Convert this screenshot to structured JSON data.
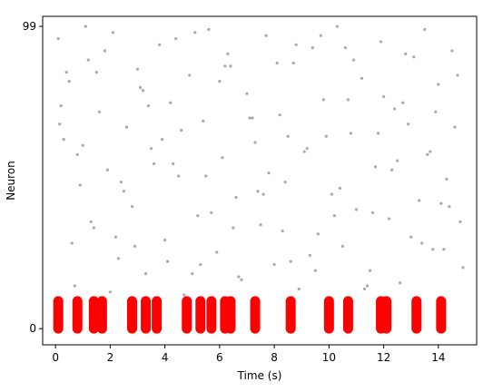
{
  "chart_data": {
    "type": "raster",
    "xlabel": "Time (s)",
    "ylabel": "Neuron",
    "xlim": [
      -0.47,
      15.4
    ],
    "ylim": [
      -5.3,
      102.3
    ],
    "xticks": [
      0,
      2,
      4,
      6,
      8,
      10,
      12,
      14
    ],
    "yticks": [
      0,
      99
    ],
    "series": [
      {
        "color": "#a9a9a9",
        "x": [
          0.1,
          0.3,
          0.5,
          0.7,
          0.9,
          1.2,
          1.4,
          1.6,
          1.9,
          2.1,
          2.3,
          2.6,
          2.8,
          3.0,
          3.3,
          3.5,
          3.8,
          4.0,
          4.2,
          4.5,
          4.7,
          4.9,
          5.2,
          5.4,
          5.6,
          5.9,
          6.1,
          6.3,
          6.6,
          6.8,
          7.0,
          7.3,
          7.5,
          7.7,
          8.0,
          8.2,
          8.4,
          8.7,
          8.9,
          9.1,
          9.4,
          9.6,
          9.8,
          10.1,
          10.3,
          10.5,
          10.8,
          11.0,
          11.2,
          11.5,
          11.7,
          11.9,
          12.2,
          12.4,
          12.6,
          12.9,
          13.1,
          13.3,
          13.6,
          13.8,
          14.0,
          14.3,
          14.5,
          14.8,
          0.2,
          0.6,
          1.0,
          1.5,
          2.0,
          2.5,
          3.1,
          3.6,
          4.1,
          4.6,
          5.1,
          5.7,
          6.2,
          6.7,
          7.2,
          7.8,
          8.3,
          8.8,
          9.3,
          9.9,
          10.4,
          10.9,
          11.4,
          12.0,
          12.5,
          13.0,
          13.5,
          14.1,
          14.6,
          14.9,
          0.4,
          0.8,
          1.3,
          1.8,
          2.4,
          2.9,
          3.4,
          3.9,
          4.4,
          5.0,
          5.5,
          6.0,
          6.5,
          7.1,
          7.6,
          8.1,
          8.6,
          9.2,
          9.7,
          10.2,
          10.7,
          11.3,
          11.8,
          12.3,
          12.8,
          13.4,
          13.9,
          14.4,
          14.7,
          0.15,
          1.1,
          2.2,
          3.2,
          4.3,
          5.3,
          6.4,
          7.4,
          8.5,
          9.5,
          10.6,
          11.6,
          12.7,
          13.7,
          14.2
        ],
        "y": [
          95,
          62,
          81,
          14,
          47,
          88,
          33,
          71,
          52,
          97,
          23,
          66,
          40,
          85,
          18,
          59,
          93,
          29,
          74,
          50,
          11,
          83,
          37,
          68,
          98,
          25,
          56,
          90,
          43,
          16,
          77,
          61,
          34,
          96,
          21,
          70,
          48,
          87,
          13,
          58,
          92,
          31,
          75,
          44,
          99,
          27,
          64,
          39,
          82,
          19,
          53,
          94,
          36,
          72,
          15,
          67,
          89,
          42,
          57,
          26,
          80,
          49,
          91,
          35,
          73,
          28,
          60,
          84,
          12,
          45,
          79,
          54,
          22,
          65,
          97,
          38,
          86,
          17,
          69,
          51,
          32,
          93,
          24,
          63,
          46,
          88,
          14,
          76,
          55,
          30,
          98,
          41,
          66,
          20,
          84,
          57,
          35,
          91,
          48,
          27,
          73,
          62,
          95,
          18,
          50,
          81,
          33,
          69,
          44,
          87,
          22,
          59,
          96,
          37,
          75,
          13,
          64,
          52,
          90,
          28,
          71,
          40,
          83,
          67,
          99,
          30,
          78,
          54,
          21,
          86,
          45,
          63,
          19,
          92,
          38,
          74,
          58,
          26
        ]
      },
      {
        "color": "#ff0000",
        "x": [
          0.1,
          0.8,
          1.4,
          1.7,
          2.8,
          3.3,
          3.7,
          4.8,
          5.3,
          5.7,
          6.2,
          6.4,
          7.3,
          8.6,
          10.0,
          10.7,
          11.9,
          12.1,
          13.2,
          14.1
        ],
        "y_low": [
          0,
          0,
          0,
          0,
          0,
          0,
          0,
          0,
          0,
          0,
          0,
          0,
          0,
          0,
          0,
          0,
          0,
          0,
          0,
          0
        ],
        "y_high": [
          9,
          9,
          9,
          9,
          9,
          9,
          9,
          9,
          9,
          9,
          9,
          9,
          9,
          9,
          9,
          9,
          9,
          9,
          9,
          9
        ]
      }
    ]
  }
}
